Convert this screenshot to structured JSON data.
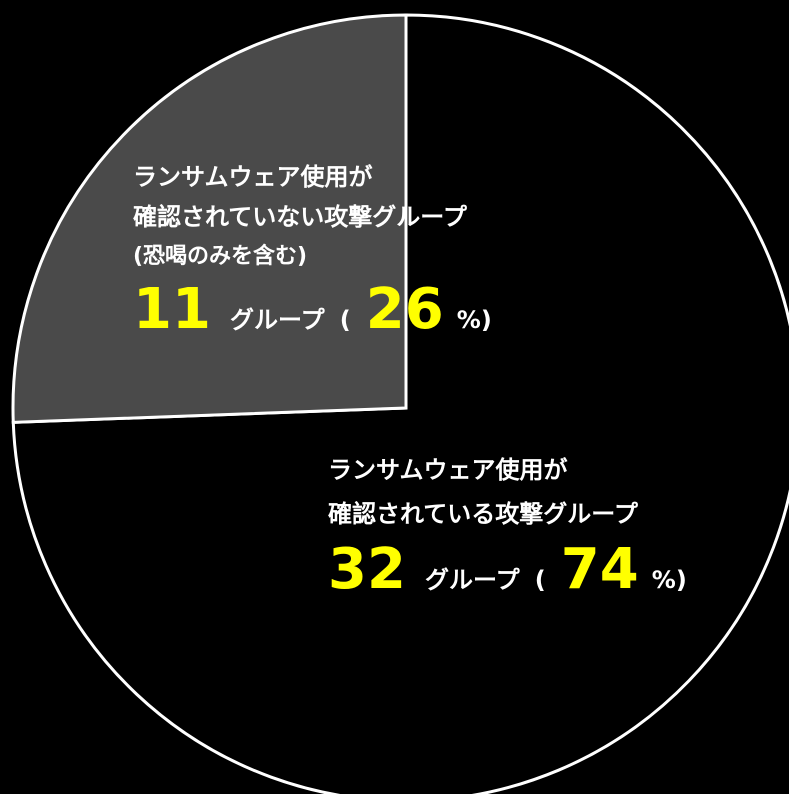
{
  "chart_data": {
    "type": "pie",
    "title": "",
    "slices": [
      {
        "label_lines": [
          "ランサムウェア使用が",
          "確認されていない攻撃グループ",
          "(恐喝のみを含む)"
        ],
        "value": 11,
        "count_unit": "グループ",
        "percent": 26,
        "paren_open": "(",
        "percent_unit": "%)",
        "color": "#4a4a4a"
      },
      {
        "label_lines": [
          "ランサムウェア使用が",
          "確認されている攻撃グループ"
        ],
        "value": 32,
        "count_unit": "グループ",
        "percent": 74,
        "paren_open": "(",
        "percent_unit": "%)",
        "color": "#000000"
      }
    ],
    "start_angle_deg": -90,
    "direction": "counterclockwise-for-first-slice"
  },
  "colors": {
    "background": "#000000",
    "outline": "#ffffff",
    "highlight_number": "#ffff00",
    "label_text": "#ffffff"
  }
}
